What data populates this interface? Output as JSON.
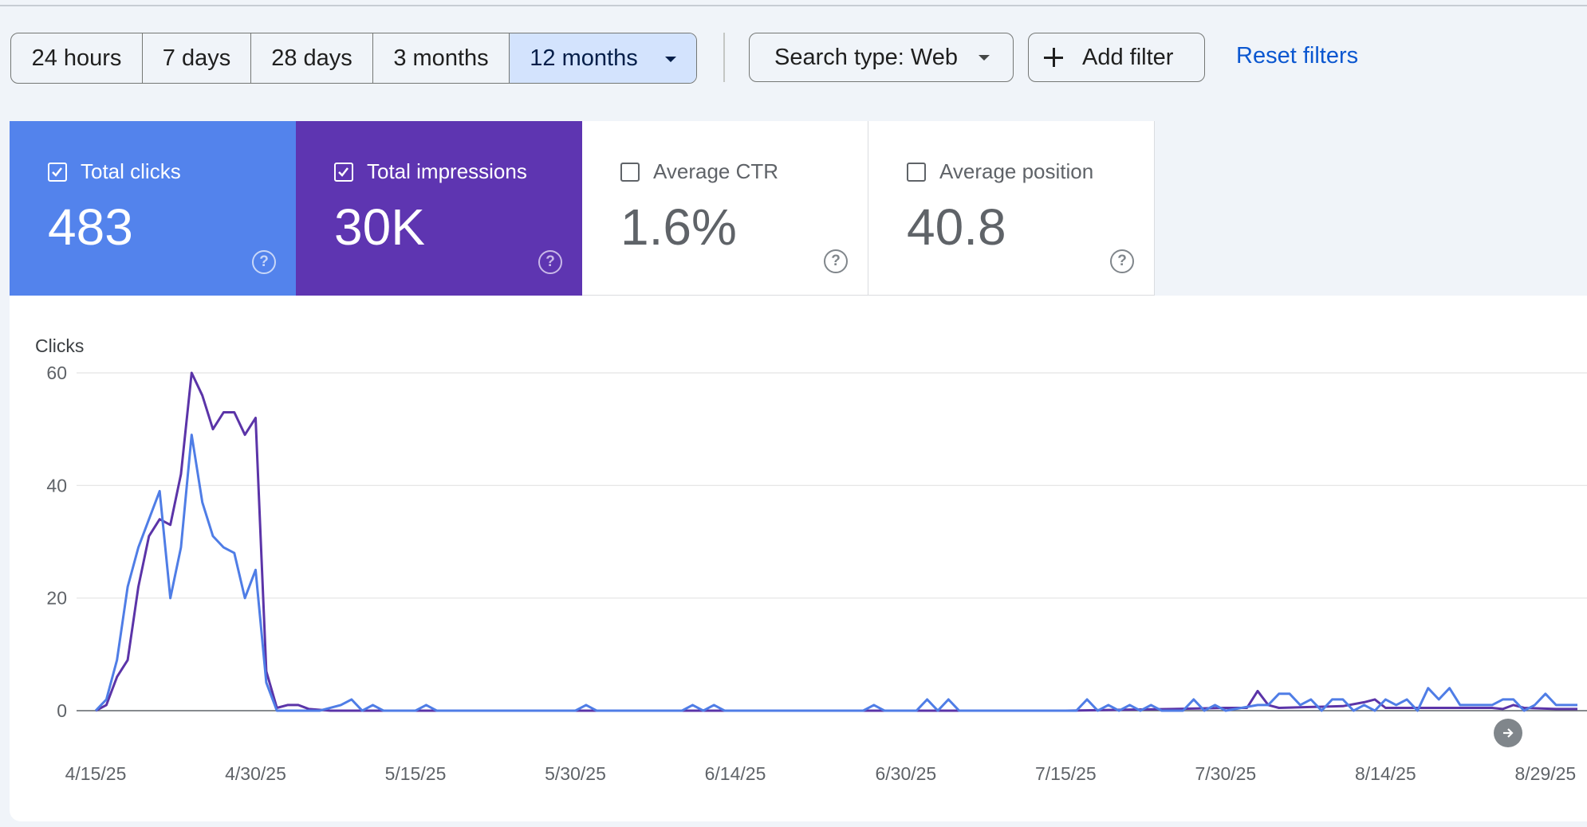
{
  "toolbar": {
    "ranges": [
      {
        "label": "24 hours",
        "active": false
      },
      {
        "label": "7 days",
        "active": false
      },
      {
        "label": "28 days",
        "active": false
      },
      {
        "label": "3 months",
        "active": false
      },
      {
        "label": "12 months",
        "active": true
      }
    ],
    "search_type": "Search type: Web",
    "add_filter": "Add filter",
    "reset_filters": "Reset filters"
  },
  "metrics": {
    "clicks": {
      "label": "Total clicks",
      "value": "483",
      "checked": true,
      "color": "#5383ec"
    },
    "impressions": {
      "label": "Total impressions",
      "value": "30K",
      "checked": true,
      "color": "#5e35b1"
    },
    "ctr": {
      "label": "Average CTR",
      "value": "1.6%",
      "checked": false
    },
    "position": {
      "label": "Average position",
      "value": "40.8",
      "checked": false
    }
  },
  "help_glyph": "?",
  "chart_data": {
    "type": "line",
    "ylabel": "Clicks",
    "ylim": [
      0,
      60
    ],
    "y_ticks": [
      0,
      20,
      40,
      60
    ],
    "x_ticks": [
      "4/15/25",
      "4/30/25",
      "5/15/25",
      "5/30/25",
      "6/14/25",
      "6/30/25",
      "7/15/25",
      "7/30/25",
      "8/14/25",
      "8/29/25"
    ],
    "x_range": [
      "4/15/25",
      "9/1/25"
    ],
    "grid": true,
    "series": [
      {
        "name": "Total clicks",
        "color": "#4f7de6",
        "points": [
          [
            "4/15/25",
            0
          ],
          [
            "4/16/25",
            2
          ],
          [
            "4/17/25",
            9
          ],
          [
            "4/18/25",
            22
          ],
          [
            "4/19/25",
            29
          ],
          [
            "4/20/25",
            34
          ],
          [
            "4/21/25",
            39
          ],
          [
            "4/22/25",
            20
          ],
          [
            "4/23/25",
            29
          ],
          [
            "4/24/25",
            49
          ],
          [
            "4/25/25",
            37
          ],
          [
            "4/26/25",
            31
          ],
          [
            "4/27/25",
            29
          ],
          [
            "4/28/25",
            28
          ],
          [
            "4/29/25",
            20
          ],
          [
            "4/30/25",
            25
          ],
          [
            "5/1/25",
            5
          ],
          [
            "5/2/25",
            0
          ],
          [
            "5/6/25",
            0
          ],
          [
            "5/8/25",
            1
          ],
          [
            "5/9/25",
            2
          ],
          [
            "5/10/25",
            0
          ],
          [
            "5/11/25",
            1
          ],
          [
            "5/12/25",
            0
          ],
          [
            "5/15/25",
            0
          ],
          [
            "5/16/25",
            1
          ],
          [
            "5/17/25",
            0
          ],
          [
            "5/30/25",
            0
          ],
          [
            "5/31/25",
            1
          ],
          [
            "6/1/25",
            0
          ],
          [
            "6/9/25",
            0
          ],
          [
            "6/10/25",
            1
          ],
          [
            "6/11/25",
            0
          ],
          [
            "6/12/25",
            1
          ],
          [
            "6/13/25",
            0
          ],
          [
            "6/26/25",
            0
          ],
          [
            "6/27/25",
            1
          ],
          [
            "6/28/25",
            0
          ],
          [
            "7/1/25",
            0
          ],
          [
            "7/2/25",
            2
          ],
          [
            "7/3/25",
            0
          ],
          [
            "7/4/25",
            2
          ],
          [
            "7/5/25",
            0
          ],
          [
            "7/16/25",
            0
          ],
          [
            "7/17/25",
            2
          ],
          [
            "7/18/25",
            0
          ],
          [
            "7/19/25",
            1
          ],
          [
            "7/20/25",
            0
          ],
          [
            "7/21/25",
            1
          ],
          [
            "7/22/25",
            0
          ],
          [
            "7/23/25",
            1
          ],
          [
            "7/24/25",
            0
          ],
          [
            "7/26/25",
            0
          ],
          [
            "7/27/25",
            2
          ],
          [
            "7/28/25",
            0
          ],
          [
            "7/29/25",
            1
          ],
          [
            "7/30/25",
            0
          ],
          [
            "8/2/25",
            1
          ],
          [
            "8/3/25",
            1
          ],
          [
            "8/4/25",
            3
          ],
          [
            "8/5/25",
            3
          ],
          [
            "8/6/25",
            1
          ],
          [
            "8/7/25",
            2
          ],
          [
            "8/8/25",
            0
          ],
          [
            "8/9/25",
            2
          ],
          [
            "8/10/25",
            2
          ],
          [
            "8/11/25",
            0
          ],
          [
            "8/12/25",
            1
          ],
          [
            "8/13/25",
            0
          ],
          [
            "8/14/25",
            2
          ],
          [
            "8/15/25",
            1
          ],
          [
            "8/16/25",
            2
          ],
          [
            "8/17/25",
            0
          ],
          [
            "8/18/25",
            4
          ],
          [
            "8/19/25",
            2
          ],
          [
            "8/20/25",
            4
          ],
          [
            "8/21/25",
            1
          ],
          [
            "8/22/25",
            1
          ],
          [
            "8/23/25",
            1
          ],
          [
            "8/24/25",
            1
          ],
          [
            "8/25/25",
            2
          ],
          [
            "8/26/25",
            2
          ],
          [
            "8/27/25",
            0
          ],
          [
            "8/28/25",
            1
          ],
          [
            "8/29/25",
            3
          ],
          [
            "8/30/25",
            1
          ],
          [
            "8/31/25",
            1
          ],
          [
            "9/1/25",
            1
          ]
        ]
      },
      {
        "name": "Total impressions",
        "color": "#5b34a8",
        "points": [
          [
            "4/15/25",
            0
          ],
          [
            "4/16/25",
            1
          ],
          [
            "4/17/25",
            6
          ],
          [
            "4/18/25",
            9
          ],
          [
            "4/19/25",
            22
          ],
          [
            "4/20/25",
            31
          ],
          [
            "4/21/25",
            34
          ],
          [
            "4/22/25",
            33
          ],
          [
            "4/23/25",
            42
          ],
          [
            "4/24/25",
            60
          ],
          [
            "4/25/25",
            56
          ],
          [
            "4/26/25",
            50
          ],
          [
            "4/27/25",
            53
          ],
          [
            "4/28/25",
            53
          ],
          [
            "4/29/25",
            49
          ],
          [
            "4/30/25",
            52
          ],
          [
            "5/1/25",
            7
          ],
          [
            "5/2/25",
            0.5
          ],
          [
            "5/3/25",
            1
          ],
          [
            "5/4/25",
            1
          ],
          [
            "5/5/25",
            0.3
          ],
          [
            "5/7/25",
            0
          ],
          [
            "5/15/25",
            0
          ],
          [
            "5/25/25",
            0
          ],
          [
            "6/5/25",
            0
          ],
          [
            "6/14/25",
            0
          ],
          [
            "6/30/25",
            0
          ],
          [
            "7/15/25",
            0
          ],
          [
            "7/25/25",
            0.3
          ],
          [
            "7/30/25",
            0.5
          ],
          [
            "8/1/25",
            0.5
          ],
          [
            "8/2/25",
            3.5
          ],
          [
            "8/3/25",
            1
          ],
          [
            "8/4/25",
            0.5
          ],
          [
            "8/10/25",
            0.8
          ],
          [
            "8/12/25",
            1.5
          ],
          [
            "8/13/25",
            2
          ],
          [
            "8/14/25",
            0.5
          ],
          [
            "8/18/25",
            0.5
          ],
          [
            "8/24/25",
            0.5
          ],
          [
            "8/25/25",
            0.3
          ],
          [
            "8/26/25",
            1
          ],
          [
            "8/27/25",
            0.5
          ],
          [
            "8/30/25",
            0.3
          ],
          [
            "9/1/25",
            0.3
          ]
        ]
      }
    ]
  }
}
